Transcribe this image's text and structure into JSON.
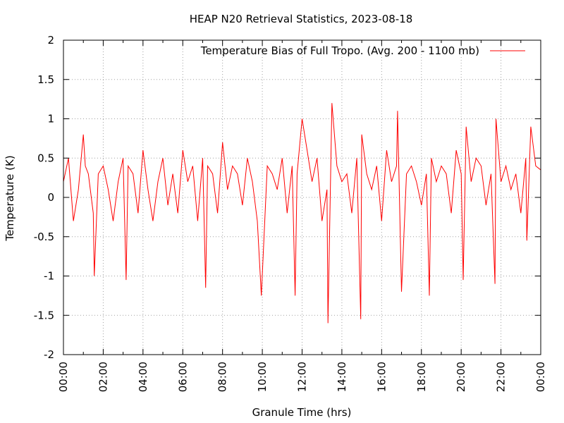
{
  "chart_data": {
    "type": "line",
    "title": "HEAP N20 Retrieval Statistics, 2023-08-18",
    "xlabel": "Granule Time (hrs)",
    "ylabel": "Temperature (K)",
    "xlim": [
      0,
      24
    ],
    "ylim": [
      -2,
      2
    ],
    "x_ticks": [
      {
        "value": 0,
        "label": "00:00"
      },
      {
        "value": 2,
        "label": "02:00"
      },
      {
        "value": 4,
        "label": "04:00"
      },
      {
        "value": 6,
        "label": "06:00"
      },
      {
        "value": 8,
        "label": "08:00"
      },
      {
        "value": 10,
        "label": "10:00"
      },
      {
        "value": 12,
        "label": "12:00"
      },
      {
        "value": 14,
        "label": "14:00"
      },
      {
        "value": 16,
        "label": "16:00"
      },
      {
        "value": 18,
        "label": "18:00"
      },
      {
        "value": 20,
        "label": "20:00"
      },
      {
        "value": 22,
        "label": "22:00"
      },
      {
        "value": 24,
        "label": "00:00"
      }
    ],
    "y_ticks": [
      {
        "value": 2,
        "label": "2"
      },
      {
        "value": 1.5,
        "label": "1.5"
      },
      {
        "value": 1,
        "label": "1"
      },
      {
        "value": 0.5,
        "label": "0.5"
      },
      {
        "value": 0,
        "label": "0"
      },
      {
        "value": -0.5,
        "label": "-0.5"
      },
      {
        "value": -1,
        "label": "-1"
      },
      {
        "value": -1.5,
        "label": "-1.5"
      },
      {
        "value": -2,
        "label": "-2"
      }
    ],
    "grid": true,
    "legend_position": "top-right",
    "series": [
      {
        "name": "Temperature Bias of Full Tropo. (Avg. 200 - 1100 mb)",
        "color": "#ff0000",
        "x": [
          0.0,
          0.25,
          0.5,
          0.75,
          1.0,
          1.1,
          1.25,
          1.5,
          1.55,
          1.75,
          2.0,
          2.25,
          2.5,
          2.75,
          3.0,
          3.15,
          3.25,
          3.5,
          3.75,
          4.0,
          4.25,
          4.5,
          4.75,
          5.0,
          5.25,
          5.5,
          5.75,
          6.0,
          6.25,
          6.5,
          6.75,
          7.0,
          7.15,
          7.25,
          7.5,
          7.75,
          8.0,
          8.25,
          8.5,
          8.75,
          9.0,
          9.25,
          9.5,
          9.75,
          9.95,
          10.25,
          10.5,
          10.75,
          11.0,
          11.25,
          11.5,
          11.65,
          11.75,
          12.0,
          12.25,
          12.5,
          12.75,
          13.0,
          13.25,
          13.3,
          13.5,
          13.75,
          14.0,
          14.25,
          14.5,
          14.75,
          14.95,
          15.0,
          15.25,
          15.5,
          15.75,
          16.0,
          16.25,
          16.5,
          16.75,
          16.8,
          17.0,
          17.25,
          17.5,
          17.75,
          18.0,
          18.25,
          18.4,
          18.5,
          18.75,
          19.0,
          19.25,
          19.5,
          19.75,
          20.0,
          20.1,
          20.25,
          20.5,
          20.75,
          21.0,
          21.25,
          21.5,
          21.7,
          21.75,
          22.0,
          22.25,
          22.5,
          22.75,
          23.0,
          23.25,
          23.3,
          23.5,
          23.75,
          24.0
        ],
        "values": [
          0.2,
          0.5,
          -0.3,
          0.1,
          0.8,
          0.4,
          0.3,
          -0.2,
          -1.0,
          0.3,
          0.4,
          0.1,
          -0.3,
          0.2,
          0.5,
          -1.05,
          0.4,
          0.3,
          -0.2,
          0.6,
          0.1,
          -0.3,
          0.2,
          0.5,
          -0.1,
          0.3,
          -0.2,
          0.6,
          0.2,
          0.4,
          -0.3,
          0.5,
          -1.15,
          0.4,
          0.3,
          -0.2,
          0.7,
          0.1,
          0.4,
          0.3,
          -0.1,
          0.5,
          0.2,
          -0.3,
          -1.25,
          0.4,
          0.3,
          0.1,
          0.5,
          -0.2,
          0.4,
          -1.25,
          0.3,
          1.0,
          0.6,
          0.2,
          0.5,
          -0.3,
          0.1,
          -1.6,
          1.2,
          0.4,
          0.2,
          0.3,
          -0.2,
          0.5,
          -1.55,
          0.8,
          0.3,
          0.1,
          0.4,
          -0.3,
          0.6,
          0.2,
          0.4,
          1.1,
          -1.2,
          0.3,
          0.4,
          0.2,
          -0.1,
          0.3,
          -1.25,
          0.5,
          0.2,
          0.4,
          0.3,
          -0.2,
          0.6,
          0.3,
          -1.05,
          0.9,
          0.2,
          0.5,
          0.4,
          -0.1,
          0.3,
          -1.1,
          1.0,
          0.2,
          0.4,
          0.1,
          0.3,
          -0.2,
          0.5,
          -0.55,
          0.9,
          0.4,
          0.35
        ]
      }
    ]
  }
}
